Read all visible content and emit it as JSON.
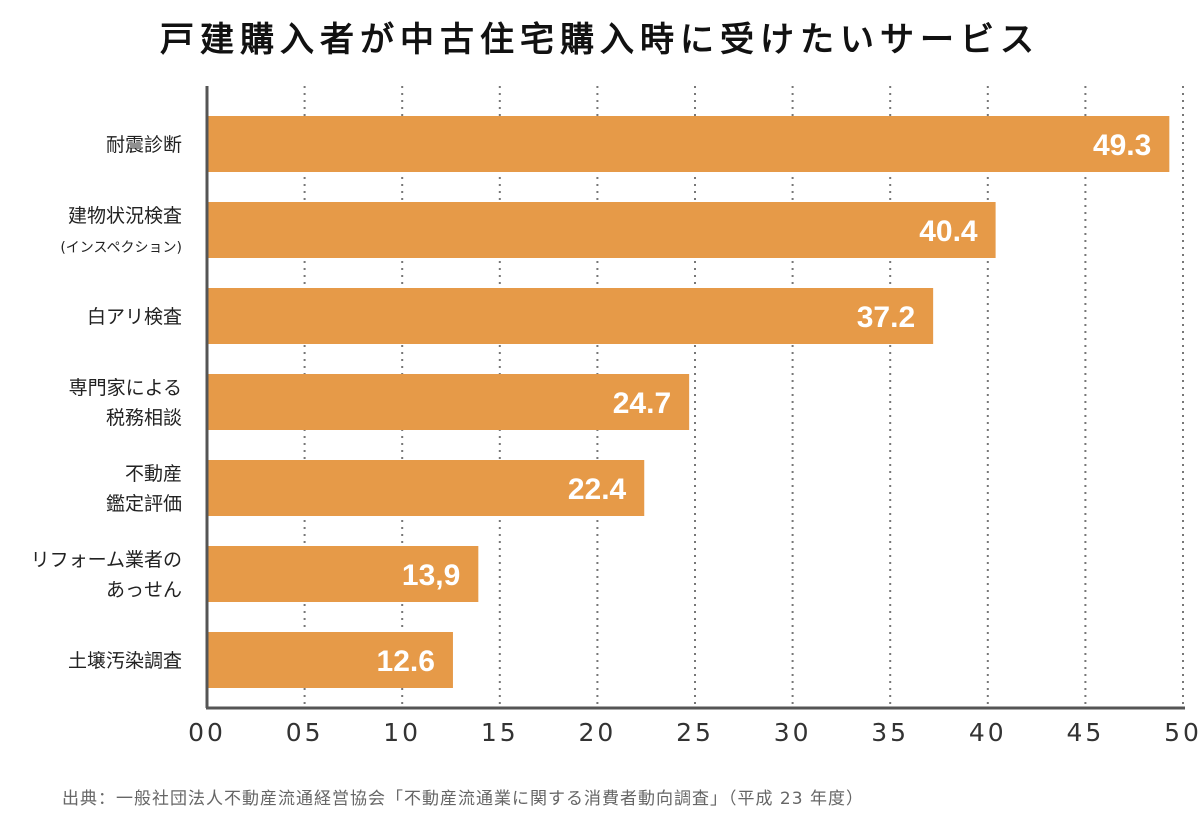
{
  "chart_data": {
    "type": "bar",
    "orientation": "horizontal",
    "title": "戸建購入者が中古住宅購入時に受けたいサービス",
    "categories": [
      [
        "耐震診断"
      ],
      [
        "建物状況検査",
        "(インスペクション)"
      ],
      [
        "白アリ検査"
      ],
      [
        "専門家による",
        "税務相談"
      ],
      [
        "不動産",
        "鑑定評価"
      ],
      [
        "リフォーム業者の",
        "あっせん"
      ],
      [
        "土壌汚染調査"
      ]
    ],
    "values": [
      49.3,
      40.4,
      37.2,
      24.7,
      22.4,
      13.9,
      12.6
    ],
    "value_labels": [
      "49.3",
      "40.4",
      "37.2",
      "24.7",
      "22.4",
      "13,9",
      "12.6"
    ],
    "xlim": [
      0,
      50
    ],
    "x_ticks": [
      0,
      5,
      10,
      15,
      20,
      25,
      30,
      35,
      40,
      45,
      50
    ],
    "x_tick_labels": [
      "00",
      "05",
      "10",
      "15",
      "20",
      "25",
      "30",
      "35",
      "40",
      "45",
      "50"
    ],
    "grid": "vertical-dotted",
    "bar_color": "#E69A48",
    "value_label_color": "#ffffff",
    "axis_color": "#555555",
    "grid_color": "#777777"
  },
  "source": "出典：一般社団法人不動産流通経営協会「不動産流通業に関する消費者動向調査」（平成 23 年度）"
}
